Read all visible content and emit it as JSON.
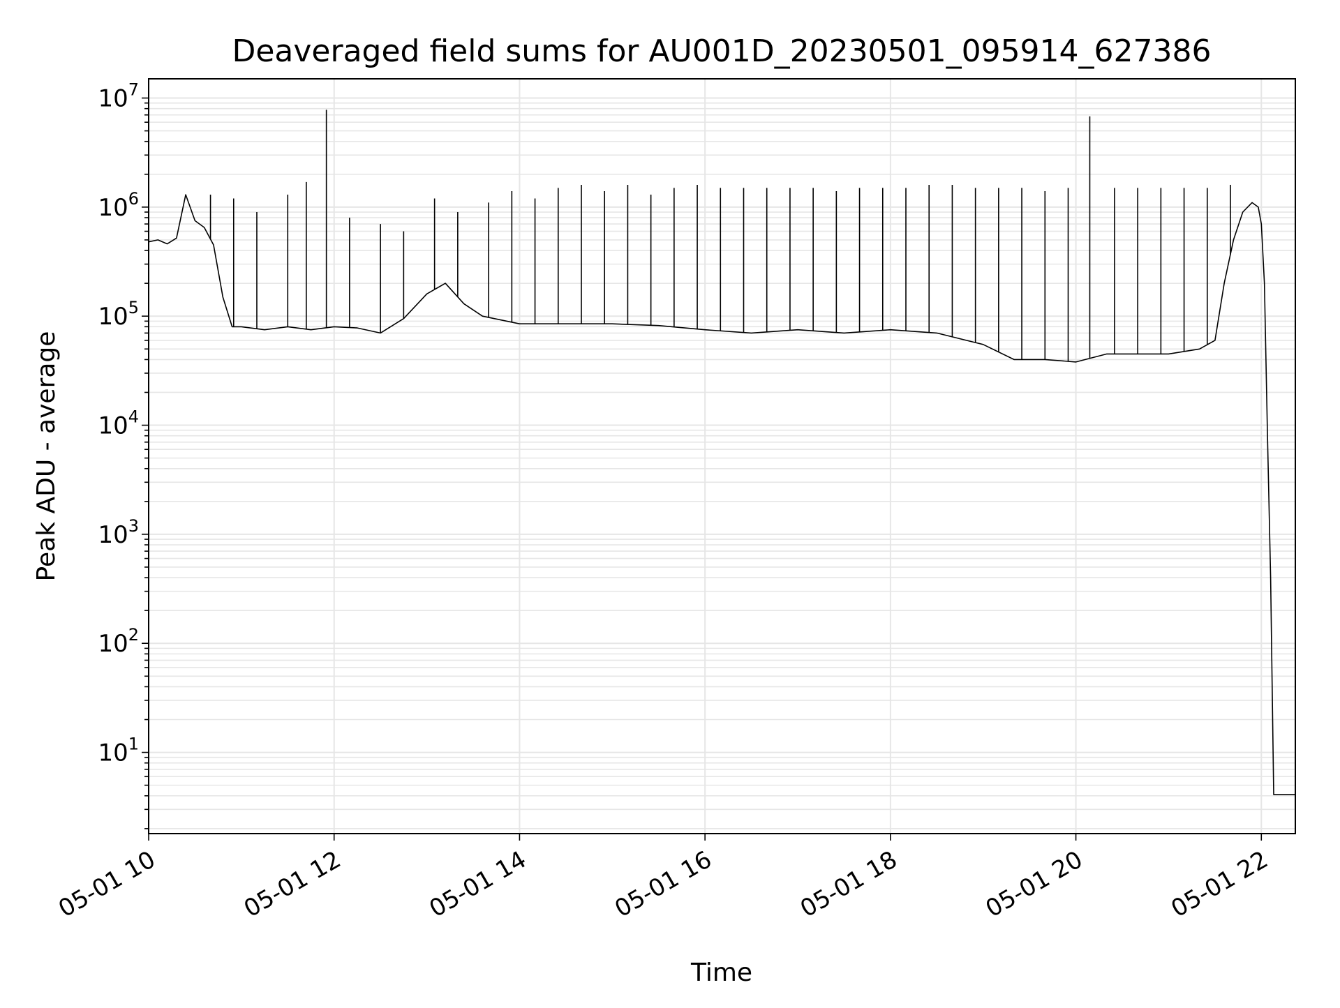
{
  "chart_data": {
    "type": "line",
    "title": "Deaveraged field sums for AU001D_20230501_095914_627386",
    "xlabel": "Time",
    "ylabel": "Peak ADU - average",
    "xscale": "time",
    "yscale": "log",
    "xlim": [
      "2023-05-01 10:00",
      "2023-05-01 22:22"
    ],
    "ylim": [
      1.8,
      15000000
    ],
    "grid": true,
    "legend": "none",
    "line_color": "#000000",
    "grid_color": "#e6e6e6",
    "x_ticks": [
      {
        "value": "2023-05-01 10:00",
        "label": "05-01 10"
      },
      {
        "value": "2023-05-01 12:00",
        "label": "05-01 12"
      },
      {
        "value": "2023-05-01 14:00",
        "label": "05-01 14"
      },
      {
        "value": "2023-05-01 16:00",
        "label": "05-01 16"
      },
      {
        "value": "2023-05-01 18:00",
        "label": "05-01 18"
      },
      {
        "value": "2023-05-01 20:00",
        "label": "05-01 20"
      },
      {
        "value": "2023-05-01 22:00",
        "label": "05-01 22"
      }
    ],
    "y_ticks": [
      {
        "value": 10,
        "base": "10",
        "exp": "1"
      },
      {
        "value": 100,
        "base": "10",
        "exp": "2"
      },
      {
        "value": 1000,
        "base": "10",
        "exp": "3"
      },
      {
        "value": 10000,
        "base": "10",
        "exp": "4"
      },
      {
        "value": 100000,
        "base": "10",
        "exp": "5"
      },
      {
        "value": 1000000,
        "base": "10",
        "exp": "6"
      },
      {
        "value": 10000000,
        "base": "10",
        "exp": "7"
      }
    ],
    "series": [
      {
        "description": "baseline",
        "x": [
          "2023-05-01 10:00",
          "2023-05-01 10:06",
          "2023-05-01 10:12",
          "2023-05-01 10:18",
          "2023-05-01 10:24",
          "2023-05-01 10:30",
          "2023-05-01 10:36",
          "2023-05-01 10:42",
          "2023-05-01 10:48",
          "2023-05-01 10:54",
          "2023-05-01 11:00",
          "2023-05-01 11:15",
          "2023-05-01 11:30",
          "2023-05-01 11:45",
          "2023-05-01 12:00",
          "2023-05-01 12:15",
          "2023-05-01 12:30",
          "2023-05-01 12:45",
          "2023-05-01 13:00",
          "2023-05-01 13:12",
          "2023-05-01 13:24",
          "2023-05-01 13:36",
          "2023-05-01 14:00",
          "2023-05-01 14:30",
          "2023-05-01 15:00",
          "2023-05-01 15:30",
          "2023-05-01 16:00",
          "2023-05-01 16:30",
          "2023-05-01 17:00",
          "2023-05-01 17:30",
          "2023-05-01 18:00",
          "2023-05-01 18:30",
          "2023-05-01 19:00",
          "2023-05-01 19:20",
          "2023-05-01 19:40",
          "2023-05-01 20:00",
          "2023-05-01 20:20",
          "2023-05-01 20:40",
          "2023-05-01 21:00",
          "2023-05-01 21:20",
          "2023-05-01 21:30",
          "2023-05-01 21:36",
          "2023-05-01 21:42",
          "2023-05-01 21:48",
          "2023-05-01 21:54",
          "2023-05-01 21:58",
          "2023-05-01 22:00",
          "2023-05-01 22:02",
          "2023-05-01 22:04",
          "2023-05-01 22:06",
          "2023-05-01 22:08",
          "2023-05-01 22:10",
          "2023-05-01 22:12",
          "2023-05-01 22:14",
          "2023-05-01 22:18",
          "2023-05-01 22:22"
        ],
        "y": [
          480000,
          500000,
          460000,
          520000,
          1300000,
          750000,
          650000,
          450000,
          150000,
          80000,
          80000,
          75000,
          80000,
          75000,
          80000,
          78000,
          70000,
          95000,
          160000,
          200000,
          130000,
          100000,
          85000,
          85000,
          85000,
          82000,
          75000,
          70000,
          75000,
          70000,
          75000,
          70000,
          55000,
          40000,
          40000,
          38000,
          45000,
          45000,
          45000,
          50000,
          60000,
          200000,
          500000,
          900000,
          1100000,
          1000000,
          700000,
          200000,
          8000,
          400,
          4.1,
          4.1,
          4.1,
          4.1,
          4.1,
          4.1
        ]
      },
      {
        "description": "spikes",
        "x": [
          "2023-05-01 10:40",
          "2023-05-01 10:55",
          "2023-05-01 11:10",
          "2023-05-01 11:30",
          "2023-05-01 11:42",
          "2023-05-01 11:55",
          "2023-05-01 12:10",
          "2023-05-01 12:30",
          "2023-05-01 12:45",
          "2023-05-01 13:05",
          "2023-05-01 13:20",
          "2023-05-01 13:40",
          "2023-05-01 13:55",
          "2023-05-01 14:10",
          "2023-05-01 14:25",
          "2023-05-01 14:40",
          "2023-05-01 14:55",
          "2023-05-01 15:10",
          "2023-05-01 15:25",
          "2023-05-01 15:40",
          "2023-05-01 15:55",
          "2023-05-01 16:10",
          "2023-05-01 16:25",
          "2023-05-01 16:40",
          "2023-05-01 16:55",
          "2023-05-01 17:10",
          "2023-05-01 17:25",
          "2023-05-01 17:40",
          "2023-05-01 17:55",
          "2023-05-01 18:10",
          "2023-05-01 18:25",
          "2023-05-01 18:40",
          "2023-05-01 18:55",
          "2023-05-01 19:10",
          "2023-05-01 19:25",
          "2023-05-01 19:40",
          "2023-05-01 19:55",
          "2023-05-01 20:09",
          "2023-05-01 20:25",
          "2023-05-01 20:40",
          "2023-05-01 20:55",
          "2023-05-01 21:10",
          "2023-05-01 21:25",
          "2023-05-01 21:40"
        ],
        "y": [
          1300000,
          1200000,
          900000,
          1300000,
          1700000,
          7800000,
          800000,
          700000,
          600000,
          1200000,
          900000,
          1100000,
          1400000,
          1200000,
          1500000,
          1600000,
          1400000,
          1600000,
          1300000,
          1500000,
          1600000,
          1500000,
          1500000,
          1500000,
          1500000,
          1500000,
          1400000,
          1500000,
          1500000,
          1500000,
          1600000,
          1600000,
          1500000,
          1500000,
          1500000,
          1400000,
          1500000,
          6800000,
          1500000,
          1500000,
          1500000,
          1500000,
          1500000,
          1600000
        ]
      }
    ]
  }
}
